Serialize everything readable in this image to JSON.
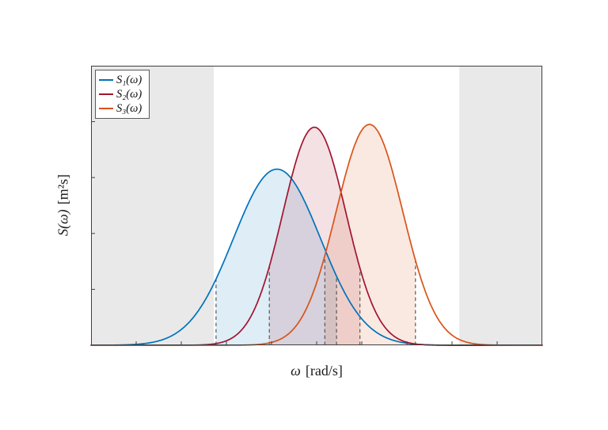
{
  "figure": {
    "ylabel_symbol": "S(ω)",
    "ylabel_unit": "[m²s]",
    "xlabel_symbol": "ω",
    "xlabel_unit": "[rad/s]"
  },
  "chart_data": {
    "type": "line",
    "title": "",
    "xlabel": "ω [rad/s]",
    "ylabel": "S(ω) [m²s]",
    "grid": false,
    "legend_position": "top-left",
    "axes_tick_labels_visible": false,
    "x_range_normalized": [
      0,
      1
    ],
    "y_range_normalized": [
      0,
      1
    ],
    "axis_color": "#3f3f3f",
    "guide_color": "#4d4d4d",
    "fill_opacity": 0.13,
    "series": [
      {
        "name": "S1",
        "label": "S₁(ω)",
        "color": "#0072BD",
        "curve": "gaussian",
        "peak_x": 0.412,
        "peak_y": 0.63,
        "sigma": 0.0965,
        "shaded_band": [
          0.277,
          0.544
        ]
      },
      {
        "name": "S2",
        "label": "S₂(ω)",
        "color": "#A2142F",
        "curve": "gaussian",
        "peak_x": 0.495,
        "peak_y": 0.78,
        "sigma": 0.07,
        "shaded_band": [
          0.395,
          0.596
        ]
      },
      {
        "name": "S3",
        "label": "S₃(ω)",
        "color": "#D95319",
        "curve": "gaussian",
        "peak_x": 0.617,
        "peak_y": 0.79,
        "sigma": 0.0737,
        "shaded_band": [
          0.518,
          0.719
        ]
      }
    ],
    "background_shaded_regions": [
      {
        "x_from": 0,
        "x_to": 0.272,
        "color": "#e9e9e9"
      },
      {
        "x_from": 0.816,
        "x_to": 1,
        "color": "#e9e9e9"
      }
    ],
    "dashed_guides": [
      {
        "x": 0.277,
        "series": 0
      },
      {
        "x": 0.544,
        "series": 0
      },
      {
        "x": 0.395,
        "series": 1
      },
      {
        "x": 0.596,
        "series": 1
      },
      {
        "x": 0.518,
        "series": 2
      },
      {
        "x": 0.719,
        "series": 2
      }
    ],
    "x_ticks_normalized": [
      0.1,
      0.2,
      0.3,
      0.4,
      0.5,
      0.6,
      0.7,
      0.8,
      0.9
    ],
    "y_ticks_normalized": [
      0.2,
      0.4,
      0.6,
      0.8
    ]
  }
}
